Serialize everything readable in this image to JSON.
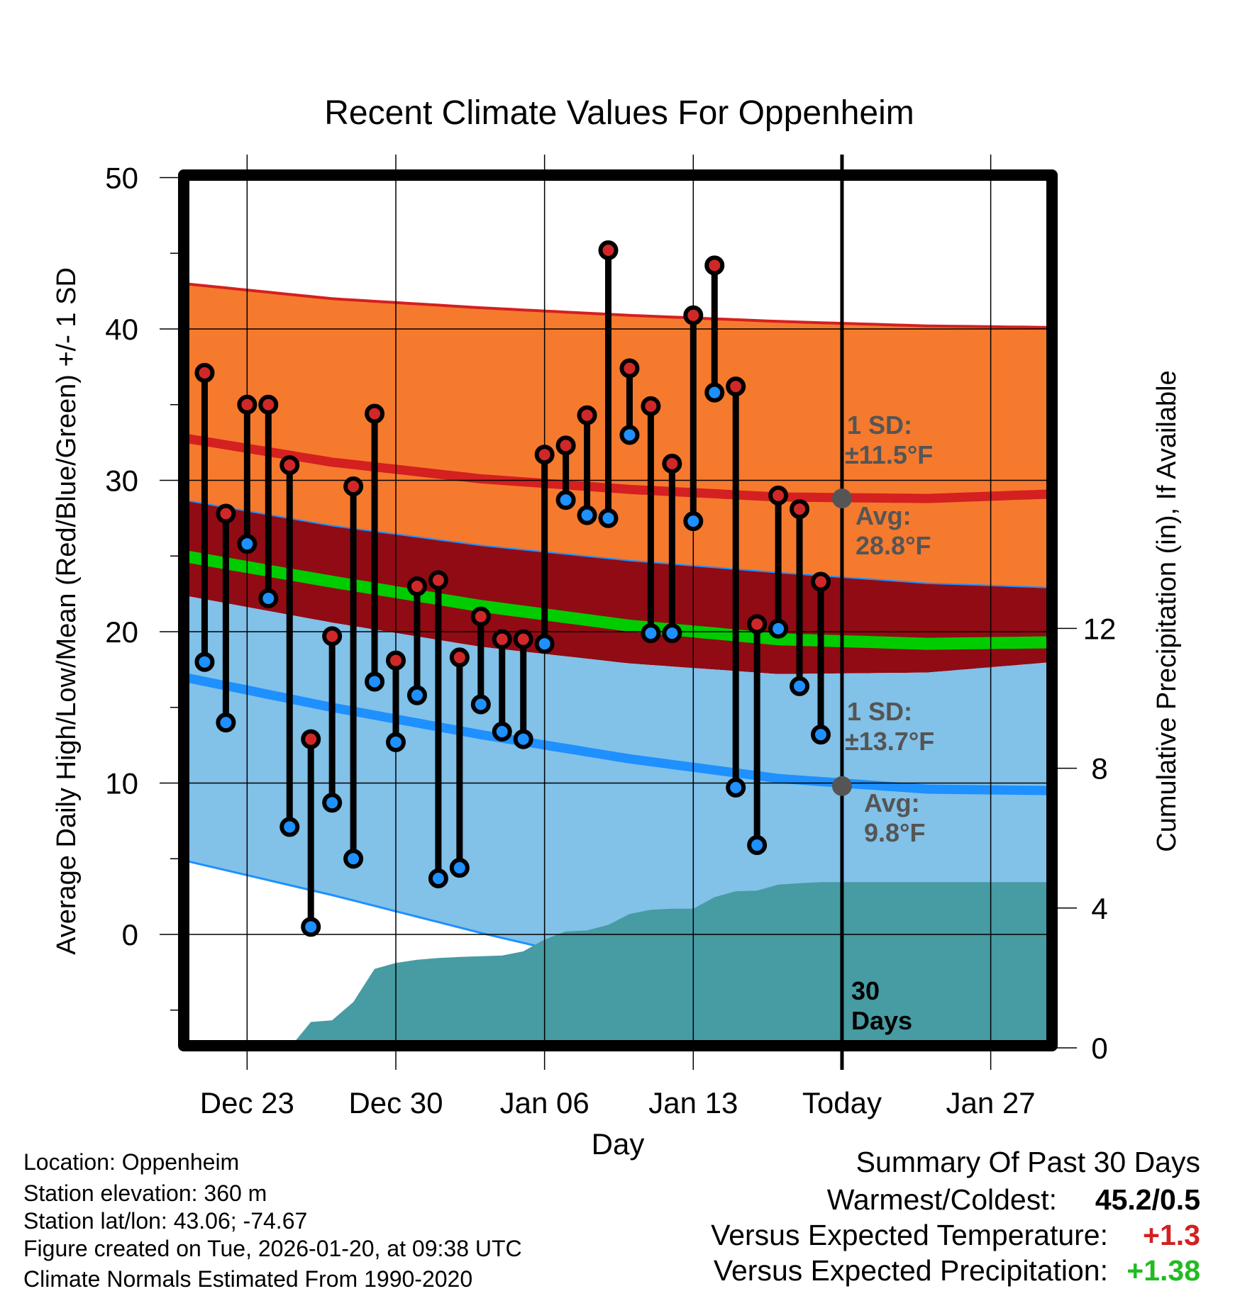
{
  "colors": {
    "orange_band": "#F57A2E",
    "darkred_band": "#910B14",
    "mean_line": "#00CC00",
    "lightblue_band": "#82C1E8",
    "low_line": "#1E90FF",
    "high_line": "#D42020",
    "precip": "#479BA3",
    "high_point": "#D02828",
    "low_point": "#1E90FF",
    "warm_delta": "#D42020",
    "precip_delta": "#22BB22"
  },
  "chart_data": {
    "type": "line",
    "title": "Recent Climate Values For Oppenheim",
    "xlabel": "Day",
    "ylabel": "Average Daily High/Low/Mean (Red/Blue/Green) +/- 1 SD",
    "y2label": "Cumulative Precipitation (in), If Available",
    "ylim": [
      -7.4,
      50
    ],
    "y2lim": [
      0,
      15.8
    ],
    "xlim_days_from_dec20": [
      0,
      40.9
    ],
    "yticks": [
      "0",
      "10",
      "20",
      "30",
      "40",
      "50"
    ],
    "y2ticks": [
      "0",
      "4",
      "8",
      "12"
    ],
    "xticks": [
      {
        "label": "Dec 23",
        "day": 3
      },
      {
        "label": "Dec 30",
        "day": 10
      },
      {
        "label": "Jan 06",
        "day": 17
      },
      {
        "label": "Jan 13",
        "day": 24
      },
      {
        "label": "Today",
        "day": 31
      },
      {
        "label": "Jan 27",
        "day": 38
      }
    ],
    "grid": true,
    "today_day": 31,
    "dates": [
      "Dec 21",
      "Dec 22",
      "Dec 23",
      "Dec 24",
      "Dec 25",
      "Dec 26",
      "Dec 27",
      "Dec 28",
      "Dec 29",
      "Dec 30",
      "Dec 31",
      "Jan 01",
      "Jan 02",
      "Jan 03",
      "Jan 04",
      "Jan 05",
      "Jan 06",
      "Jan 07",
      "Jan 08",
      "Jan 09",
      "Jan 10",
      "Jan 11",
      "Jan 12",
      "Jan 13",
      "Jan 14",
      "Jan 15",
      "Jan 16",
      "Jan 17",
      "Jan 18",
      "Jan 19"
    ],
    "first_day": 1,
    "highs": [
      37.1,
      27.8,
      35.0,
      35.0,
      31.0,
      12.9,
      19.7,
      29.6,
      34.4,
      18.1,
      23.0,
      23.4,
      18.3,
      21.0,
      19.5,
      19.5,
      31.7,
      32.3,
      34.3,
      45.2,
      37.4,
      34.9,
      31.1,
      40.9,
      44.2,
      36.2,
      20.5,
      29.0,
      28.1,
      23.3
    ],
    "lows": [
      18.0,
      14.0,
      25.8,
      22.2,
      7.1,
      0.5,
      8.7,
      5.0,
      16.7,
      12.7,
      15.8,
      3.7,
      4.4,
      15.2,
      13.4,
      12.9,
      19.2,
      28.7,
      27.7,
      27.5,
      33.0,
      19.9,
      19.9,
      27.3,
      35.8,
      9.7,
      5.9,
      20.2,
      16.4,
      13.2
    ],
    "precip_cumulative": [
      0,
      0,
      0,
      0,
      0,
      0.74,
      0.79,
      1.31,
      2.26,
      2.43,
      2.52,
      2.57,
      2.6,
      2.62,
      2.64,
      2.76,
      3.1,
      3.33,
      3.36,
      3.52,
      3.83,
      3.95,
      3.98,
      3.98,
      4.31,
      4.48,
      4.5,
      4.67,
      4.71,
      4.74
    ],
    "normals": {
      "days": [
        0,
        7,
        14,
        21,
        28,
        35,
        41
      ],
      "high_plus_sd": [
        43.0,
        42.0,
        41.4,
        40.9,
        40.5,
        40.2,
        40.1
      ],
      "high_avg": [
        32.8,
        31.2,
        30.1,
        29.4,
        28.9,
        28.8,
        29.1
      ],
      "high_minus_sd": [
        28.7,
        27.0,
        25.7,
        24.7,
        23.9,
        23.2,
        22.9
      ],
      "mean": [
        25.0,
        23.3,
        21.7,
        20.4,
        19.5,
        19.2,
        19.3
      ],
      "low_plus_sd": [
        22.4,
        20.6,
        19.0,
        17.9,
        17.2,
        17.3,
        18.0
      ],
      "low_avg": [
        17.0,
        15.0,
        13.2,
        11.6,
        10.3,
        9.6,
        9.5
      ],
      "low_minus_sd": [
        4.9,
        2.6,
        0.1,
        -2.2,
        -4.1,
        -5.3,
        -5.6
      ]
    },
    "today_high_avg": 28.8,
    "today_low_avg": 9.8,
    "annotations": {
      "high_sd_label": "1 SD:",
      "high_sd_value": "±11.5°F",
      "high_avg_label": "Avg:",
      "high_avg_value": "28.8°F",
      "low_sd_label": "1 SD:",
      "low_sd_value": "±13.7°F",
      "low_avg_label": "Avg:",
      "low_avg_value": "9.8°F",
      "window_num": "30",
      "window_unit": "Days"
    }
  },
  "info": {
    "location": "Location: Oppenheim",
    "elevation": "Station elevation: 360 m",
    "latlon": "Station lat/lon: 43.06; -74.67",
    "created": "Figure created on Tue, 2026-01-20, at 09:38 UTC",
    "normals": "Climate Normals Estimated From 1990-2020"
  },
  "summary": {
    "title": "Summary Of Past 30 Days",
    "warm_cold_label": "Warmest/Coldest:",
    "warm_cold_value": "45.2/0.5",
    "temp_label": "Versus Expected Temperature:",
    "temp_value": "+1.3",
    "precip_label": "Versus Expected Precipitation:",
    "precip_value": "+1.38"
  }
}
